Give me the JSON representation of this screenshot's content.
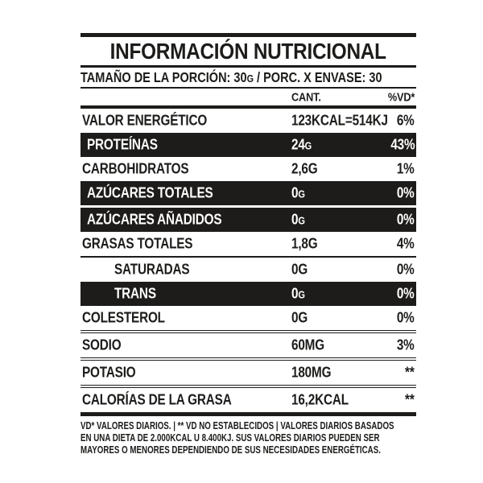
{
  "label": {
    "title": "INFORMACIÓN NUTRICIONAL",
    "serving_line": "TAMAÑO DE LA PORCIÓN: 30G / PORC. X ENVASE: 30",
    "columns": {
      "amount": "CANT.",
      "daily_value": "%VD*"
    },
    "rows": [
      {
        "name": "VALOR ENERGÉTICO",
        "amount": "123KCAL=514KJ",
        "dv": "6%",
        "style": "plain"
      },
      {
        "name": "PROTEÍNAS",
        "amount": "24G",
        "dv": "43%",
        "style": "dark",
        "small_g": true
      },
      {
        "name": "CARBOHIDRATOS",
        "amount": "2,6G",
        "dv": "1%",
        "style": "plain"
      },
      {
        "name": "AZÚCARES TOTALES",
        "amount": "0G",
        "dv": "0%",
        "style": "dark",
        "small_g": true,
        "gap_below": true
      },
      {
        "name": "AZÚCARES AÑADIDOS",
        "amount": "0G",
        "dv": "0%",
        "style": "dark",
        "small_g": true
      },
      {
        "name": "GRASAS TOTALES",
        "amount": "1,8G",
        "dv": "4%",
        "style": "plain",
        "rule_below": "thin"
      },
      {
        "name": "SATURADAS",
        "amount": "0G",
        "dv": "0%",
        "style": "plain",
        "indent": true
      },
      {
        "name": "TRANS",
        "amount": "0G",
        "dv": "0%",
        "style": "dark",
        "indent": true,
        "small_g": true
      },
      {
        "name": "COLESTEROL",
        "amount": "0G",
        "dv": "0%",
        "style": "plain",
        "rule_below": "double"
      },
      {
        "name": "SODIO",
        "amount": "60MG",
        "dv": "3%",
        "style": "plain",
        "rule_below": "double"
      },
      {
        "name": "POTASIO",
        "amount": "180MG",
        "dv": "**",
        "style": "plain",
        "rule_below": "double"
      },
      {
        "name": "CALORÍAS DE LA GRASA",
        "amount": "16,2KCAL",
        "dv": "**",
        "style": "plain"
      }
    ],
    "footnote_lines": [
      "VD* VALORES DIARIOS.  |  ** VD NO ESTABLECIDOS | VALORES DIARIOS BASADOS",
      "EN UNA DIETA DE 2.000KCAL U 8.400KJ. SUS VALORES DIARIOS PUEDEN SER",
      "MAYORES O MENORES DEPENDIENDO DE SUS NECESIDADES ENERGÉTICAS."
    ],
    "colors": {
      "ink": "#1d1c1a",
      "paper": "#ffffff"
    }
  }
}
